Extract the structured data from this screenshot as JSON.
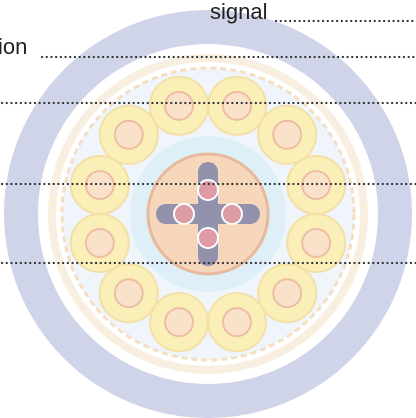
{
  "labels": [
    "signal",
    "ion"
  ]
}
